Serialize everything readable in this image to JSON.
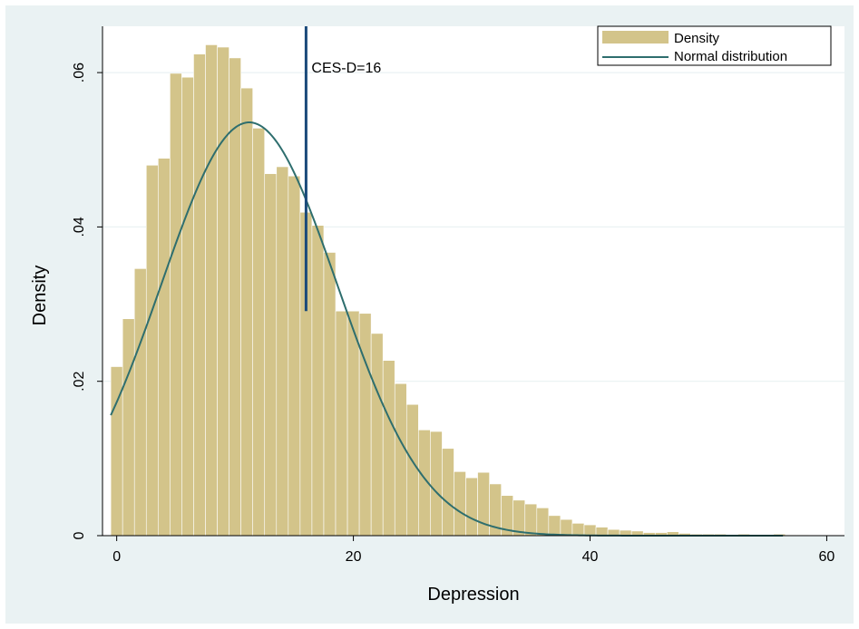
{
  "chart_data": {
    "type": "bar",
    "xlabel": "Depression",
    "ylabel": "Density",
    "xlim": [
      -1.2,
      61.5
    ],
    "ylim": [
      0,
      0.066
    ],
    "xticks": [
      0,
      20,
      40,
      60
    ],
    "xtick_labels": [
      "0",
      "20",
      "40",
      "60"
    ],
    "yticks": [
      0,
      0.02,
      0.04,
      0.06
    ],
    "ytick_labels": [
      "0",
      ".02",
      ".04",
      ".06"
    ],
    "grid": true,
    "legend_position": "top-right",
    "bin_width": 1,
    "bin_start": -0.5,
    "series": [
      {
        "name": "Density",
        "kind": "histogram",
        "color": "#d3c48a",
        "values": [
          0.0219,
          0.0281,
          0.0346,
          0.048,
          0.0489,
          0.0599,
          0.0594,
          0.0624,
          0.0636,
          0.0633,
          0.0619,
          0.058,
          0.0528,
          0.0469,
          0.0478,
          0.0466,
          0.0419,
          0.0402,
          0.0367,
          0.0291,
          0.0291,
          0.0288,
          0.0262,
          0.0227,
          0.0197,
          0.017,
          0.0137,
          0.0135,
          0.0113,
          0.0083,
          0.0075,
          0.0082,
          0.0067,
          0.0052,
          0.0046,
          0.0041,
          0.0036,
          0.0026,
          0.0021,
          0.0016,
          0.0014,
          0.0011,
          0.0008,
          0.0007,
          0.0006,
          0.0004,
          0.0004,
          0.0005,
          0.0003,
          0.0002,
          0.0002,
          0.0002,
          0.0001,
          0.0002,
          0.0001,
          0.0001,
          0.0002,
          0.0001,
          0.0001
        ]
      },
      {
        "name": "Normal distribution",
        "kind": "line",
        "color": "#2e6e6e",
        "mean": 11.2,
        "sd": 7.45
      }
    ],
    "annotations": [
      {
        "type": "vline",
        "x": 16,
        "label": "CES-D=16",
        "color": "#1a4a7a"
      }
    ]
  }
}
